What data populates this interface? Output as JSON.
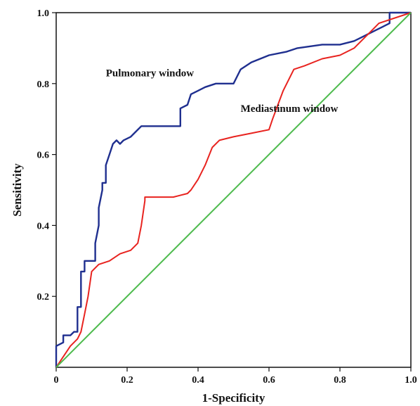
{
  "chart_data": {
    "type": "line",
    "title": "",
    "xlabel": "1-Specificity",
    "ylabel": "Sensitivity",
    "xlim": [
      0,
      1
    ],
    "ylim": [
      0,
      1
    ],
    "x_ticks": [
      "0",
      "0.2",
      "0.4",
      "0.6",
      "0.8",
      "1.0"
    ],
    "y_ticks": [
      "0.2",
      "0.4",
      "0.6",
      "0.8",
      "1.0"
    ],
    "grid": false,
    "annotations": [
      "Pulmonary window",
      "Mediastinum window"
    ],
    "series": [
      {
        "name": "Pulmonary window",
        "color": "#1f2f8f",
        "points": [
          [
            0.0,
            0.0
          ],
          [
            0.0,
            0.06
          ],
          [
            0.02,
            0.07
          ],
          [
            0.02,
            0.09
          ],
          [
            0.04,
            0.09
          ],
          [
            0.05,
            0.1
          ],
          [
            0.06,
            0.1
          ],
          [
            0.06,
            0.17
          ],
          [
            0.07,
            0.17
          ],
          [
            0.07,
            0.27
          ],
          [
            0.08,
            0.27
          ],
          [
            0.08,
            0.3
          ],
          [
            0.11,
            0.3
          ],
          [
            0.11,
            0.35
          ],
          [
            0.12,
            0.4
          ],
          [
            0.12,
            0.45
          ],
          [
            0.13,
            0.5
          ],
          [
            0.13,
            0.52
          ],
          [
            0.14,
            0.52
          ],
          [
            0.14,
            0.57
          ],
          [
            0.15,
            0.6
          ],
          [
            0.16,
            0.63
          ],
          [
            0.17,
            0.64
          ],
          [
            0.18,
            0.63
          ],
          [
            0.19,
            0.64
          ],
          [
            0.21,
            0.65
          ],
          [
            0.22,
            0.66
          ],
          [
            0.24,
            0.68
          ],
          [
            0.35,
            0.68
          ],
          [
            0.35,
            0.73
          ],
          [
            0.37,
            0.74
          ],
          [
            0.38,
            0.77
          ],
          [
            0.4,
            0.78
          ],
          [
            0.42,
            0.79
          ],
          [
            0.45,
            0.8
          ],
          [
            0.5,
            0.8
          ],
          [
            0.52,
            0.84
          ],
          [
            0.55,
            0.86
          ],
          [
            0.6,
            0.88
          ],
          [
            0.65,
            0.89
          ],
          [
            0.68,
            0.9
          ],
          [
            0.75,
            0.91
          ],
          [
            0.8,
            0.91
          ],
          [
            0.84,
            0.92
          ],
          [
            0.86,
            0.93
          ],
          [
            0.9,
            0.95
          ],
          [
            0.92,
            0.96
          ],
          [
            0.94,
            0.97
          ],
          [
            0.94,
            1.0
          ],
          [
            1.0,
            1.0
          ]
        ]
      },
      {
        "name": "Mediastinum window",
        "color": "#e8231f",
        "points": [
          [
            0.0,
            0.0
          ],
          [
            0.02,
            0.03
          ],
          [
            0.04,
            0.06
          ],
          [
            0.06,
            0.08
          ],
          [
            0.07,
            0.1
          ],
          [
            0.08,
            0.15
          ],
          [
            0.09,
            0.2
          ],
          [
            0.1,
            0.27
          ],
          [
            0.12,
            0.29
          ],
          [
            0.15,
            0.3
          ],
          [
            0.18,
            0.32
          ],
          [
            0.21,
            0.33
          ],
          [
            0.23,
            0.35
          ],
          [
            0.24,
            0.4
          ],
          [
            0.25,
            0.47
          ],
          [
            0.25,
            0.48
          ],
          [
            0.33,
            0.48
          ],
          [
            0.37,
            0.49
          ],
          [
            0.38,
            0.5
          ],
          [
            0.4,
            0.53
          ],
          [
            0.42,
            0.57
          ],
          [
            0.44,
            0.62
          ],
          [
            0.46,
            0.64
          ],
          [
            0.5,
            0.65
          ],
          [
            0.55,
            0.66
          ],
          [
            0.6,
            0.67
          ],
          [
            0.61,
            0.7
          ],
          [
            0.64,
            0.78
          ],
          [
            0.67,
            0.84
          ],
          [
            0.7,
            0.85
          ],
          [
            0.75,
            0.87
          ],
          [
            0.8,
            0.88
          ],
          [
            0.84,
            0.9
          ],
          [
            0.86,
            0.92
          ],
          [
            0.89,
            0.95
          ],
          [
            0.91,
            0.97
          ],
          [
            1.0,
            1.0
          ]
        ]
      },
      {
        "name": "",
        "color": "#4dbb4d",
        "points": [
          [
            0.0,
            0.0
          ],
          [
            1.0,
            1.0
          ]
        ]
      }
    ]
  }
}
